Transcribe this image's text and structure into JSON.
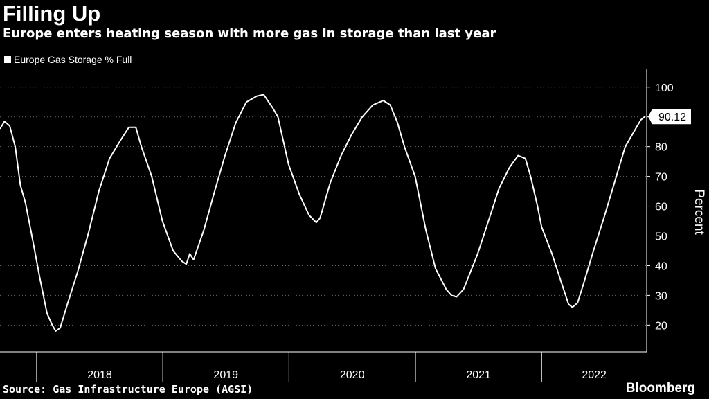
{
  "header": {
    "title": "Filling Up",
    "subtitle": "Europe enters heating season with more gas in storage than last year"
  },
  "footer": {
    "source": "Source: Gas Infrastructure Europe (AGSI)",
    "brand": "Bloomberg"
  },
  "chart_data": {
    "type": "line",
    "title": "Filling Up",
    "subtitle": "Europe enters heating season with more gas in storage than last year",
    "ylabel": "Percent",
    "xlabel": "",
    "ylim": [
      11,
      106
    ],
    "yticks": [
      20,
      30,
      40,
      50,
      60,
      70,
      80,
      90,
      100
    ],
    "xlim": [
      "2017-09-17",
      "2022-11-01"
    ],
    "year_labels": [
      "2018",
      "2019",
      "2020",
      "2021",
      "2022"
    ],
    "year_boundaries": [
      "2018-01-01",
      "2019-01-01",
      "2020-01-01",
      "2021-01-01",
      "2022-01-01",
      "2023-01-01"
    ],
    "grid": "horizontal dotted",
    "legend_position": "top-left",
    "y_axis_side": "right",
    "last_value_label": "90.12",
    "colors": {
      "background": "#000000",
      "line": "#ffffff",
      "grid": "#666666"
    },
    "series": [
      {
        "name": "Europe Gas Storage % Full",
        "points": [
          [
            "2017-09-17",
            86
          ],
          [
            "2017-09-30",
            88.5
          ],
          [
            "2017-10-15",
            87
          ],
          [
            "2017-10-31",
            80
          ],
          [
            "2017-11-15",
            67
          ],
          [
            "2017-11-30",
            61
          ],
          [
            "2017-12-20",
            49
          ],
          [
            "2018-01-10",
            36
          ],
          [
            "2018-01-31",
            24
          ],
          [
            "2018-02-15",
            20
          ],
          [
            "2018-02-25",
            18
          ],
          [
            "2018-03-10",
            19
          ],
          [
            "2018-03-31",
            27
          ],
          [
            "2018-04-30",
            38
          ],
          [
            "2018-05-31",
            51
          ],
          [
            "2018-06-30",
            65
          ],
          [
            "2018-07-31",
            76
          ],
          [
            "2018-08-31",
            82
          ],
          [
            "2018-09-25",
            86.5
          ],
          [
            "2018-10-15",
            86.5
          ],
          [
            "2018-10-31",
            80
          ],
          [
            "2018-11-30",
            70
          ],
          [
            "2018-12-31",
            55
          ],
          [
            "2019-01-31",
            45
          ],
          [
            "2019-02-25",
            41.5
          ],
          [
            "2019-03-10",
            40.5
          ],
          [
            "2019-03-20",
            44
          ],
          [
            "2019-03-31",
            42
          ],
          [
            "2019-04-30",
            52
          ],
          [
            "2019-05-31",
            65
          ],
          [
            "2019-06-30",
            77
          ],
          [
            "2019-07-31",
            88
          ],
          [
            "2019-08-31",
            95
          ],
          [
            "2019-09-30",
            97
          ],
          [
            "2019-10-20",
            97.5
          ],
          [
            "2019-11-15",
            93
          ],
          [
            "2019-11-30",
            90
          ],
          [
            "2019-12-31",
            74
          ],
          [
            "2020-01-31",
            64
          ],
          [
            "2020-02-28",
            57
          ],
          [
            "2020-03-20",
            54.5
          ],
          [
            "2020-03-31",
            56
          ],
          [
            "2020-04-30",
            68
          ],
          [
            "2020-05-31",
            77
          ],
          [
            "2020-06-30",
            84
          ],
          [
            "2020-07-31",
            90
          ],
          [
            "2020-08-31",
            94
          ],
          [
            "2020-09-30",
            95.5
          ],
          [
            "2020-10-20",
            94
          ],
          [
            "2020-11-10",
            88
          ],
          [
            "2020-11-30",
            80
          ],
          [
            "2020-12-31",
            70
          ],
          [
            "2021-01-31",
            52
          ],
          [
            "2021-02-28",
            39
          ],
          [
            "2021-03-31",
            32
          ],
          [
            "2021-04-15",
            30
          ],
          [
            "2021-04-30",
            29.5
          ],
          [
            "2021-05-20",
            32
          ],
          [
            "2021-06-30",
            44
          ],
          [
            "2021-07-31",
            55
          ],
          [
            "2021-08-31",
            66
          ],
          [
            "2021-09-30",
            73
          ],
          [
            "2021-10-25",
            77
          ],
          [
            "2021-11-15",
            76
          ],
          [
            "2021-11-30",
            70
          ],
          [
            "2021-12-20",
            60
          ],
          [
            "2022-01-01",
            53
          ],
          [
            "2022-01-31",
            44
          ],
          [
            "2022-02-28",
            34
          ],
          [
            "2022-03-20",
            27
          ],
          [
            "2022-03-31",
            26
          ],
          [
            "2022-04-15",
            27.5
          ],
          [
            "2022-04-30",
            33
          ],
          [
            "2022-05-31",
            45
          ],
          [
            "2022-06-30",
            56
          ],
          [
            "2022-07-31",
            68
          ],
          [
            "2022-08-31",
            80
          ],
          [
            "2022-09-30",
            86
          ],
          [
            "2022-10-15",
            89
          ],
          [
            "2022-10-27",
            90.12
          ]
        ]
      }
    ]
  }
}
